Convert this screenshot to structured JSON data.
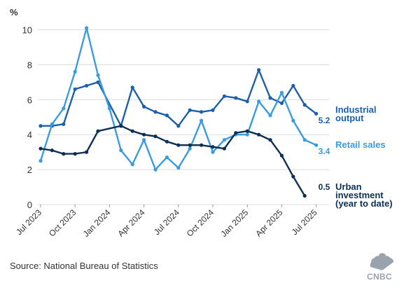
{
  "chart_data": {
    "type": "line",
    "title": "",
    "ylabel": "%",
    "xlabel": "",
    "ylim": [
      0,
      10
    ],
    "yticks": [
      0,
      2,
      4,
      6,
      8,
      10
    ],
    "grid": true,
    "months": [
      "Jul 2023",
      "Aug 2023",
      "Sep 2023",
      "Oct 2023",
      "Nov 2023",
      "Dec 2023",
      "Jan 2024",
      "Feb 2024",
      "Mar 2024",
      "Apr 2024",
      "May 2024",
      "Jun 2024",
      "Jul 2024",
      "Aug 2024",
      "Sep 2024",
      "Oct 2024",
      "Nov 2024",
      "Dec 2024",
      "Jan 2025",
      "Feb 2025",
      "Mar 2025",
      "Apr 2025",
      "May 2025",
      "Jun 2025",
      "Jul 2025",
      "Aug 2025"
    ],
    "xtick_labels": [
      "Jul 2023",
      "Oct 2023",
      "Jan 2024",
      "Apr 2024",
      "Jul 2024",
      "Oct 2024",
      "Jan 2025",
      "Apr 2025",
      "Jul 2025"
    ],
    "series": [
      {
        "name": "Industrial output",
        "name_lines": [
          "Industrial",
          "output"
        ],
        "end_label": "5.2",
        "color": "#1f5fa8",
        "points": [
          [
            "Jul 2023",
            4.5
          ],
          [
            "Aug 2023",
            4.5
          ],
          [
            "Sep 2023",
            4.6
          ],
          [
            "Oct 2023",
            6.6
          ],
          [
            "Nov 2023",
            6.8
          ],
          [
            "Dec 2023",
            7.0
          ],
          [
            "Feb 2024",
            4.5
          ],
          [
            "Mar 2024",
            6.7
          ],
          [
            "Apr 2024",
            5.6
          ],
          [
            "May 2024",
            5.3
          ],
          [
            "Jun 2024",
            5.1
          ],
          [
            "Jul 2024",
            4.5
          ],
          [
            "Aug 2024",
            5.4
          ],
          [
            "Sep 2024",
            5.3
          ],
          [
            "Oct 2024",
            5.4
          ],
          [
            "Nov 2024",
            6.2
          ],
          [
            "Dec 2024",
            6.1
          ],
          [
            "Jan 2025",
            5.9
          ],
          [
            "Feb 2025",
            7.7
          ],
          [
            "Mar 2025",
            6.1
          ],
          [
            "Apr 2025",
            5.8
          ],
          [
            "May 2025",
            6.8
          ],
          [
            "Jun 2025",
            5.7
          ],
          [
            "Jul 2025",
            5.2
          ]
        ]
      },
      {
        "name": "Retail sales",
        "name_lines": [
          "Retail sales"
        ],
        "end_label": "3.4",
        "color": "#3a9be0",
        "points": [
          [
            "Jul 2023",
            2.5
          ],
          [
            "Aug 2023",
            4.6
          ],
          [
            "Sep 2023",
            5.5
          ],
          [
            "Oct 2023",
            7.6
          ],
          [
            "Nov 2023",
            10.1
          ],
          [
            "Dec 2023",
            7.4
          ],
          [
            "Jan 2024",
            5.5
          ],
          [
            "Feb 2024",
            3.1
          ],
          [
            "Mar 2024",
            2.3
          ],
          [
            "Apr 2024",
            3.7
          ],
          [
            "May 2024",
            2.0
          ],
          [
            "Jun 2024",
            2.7
          ],
          [
            "Jul 2024",
            2.1
          ],
          [
            "Aug 2024",
            3.2
          ],
          [
            "Sep 2024",
            4.8
          ],
          [
            "Oct 2024",
            3.0
          ],
          [
            "Nov 2024",
            3.7
          ],
          [
            "Dec 2024",
            4.0
          ],
          [
            "Jan 2025",
            4.0
          ],
          [
            "Feb 2025",
            5.9
          ],
          [
            "Mar 2025",
            5.1
          ],
          [
            "Apr 2025",
            6.4
          ],
          [
            "May 2025",
            4.8
          ],
          [
            "Jun 2025",
            3.7
          ],
          [
            "Jul 2025",
            3.4
          ]
        ]
      },
      {
        "name": "Urban investment (year to date)",
        "name_lines": [
          "Urban",
          "investment",
          "(year to date)"
        ],
        "end_label": "0.5",
        "color": "#0d2f54",
        "points": [
          [
            "Jul 2023",
            3.2
          ],
          [
            "Aug 2023",
            3.1
          ],
          [
            "Sep 2023",
            2.9
          ],
          [
            "Oct 2023",
            2.9
          ],
          [
            "Nov 2023",
            3.0
          ],
          [
            "Dec 2023",
            4.2
          ],
          [
            "Feb 2024",
            4.5
          ],
          [
            "Mar 2024",
            4.2
          ],
          [
            "Apr 2024",
            4.0
          ],
          [
            "May 2024",
            3.9
          ],
          [
            "Jun 2024",
            3.6
          ],
          [
            "Jul 2024",
            3.4
          ],
          [
            "Aug 2024",
            3.4
          ],
          [
            "Sep 2024",
            3.4
          ],
          [
            "Oct 2024",
            3.3
          ],
          [
            "Nov 2024",
            3.2
          ],
          [
            "Dec 2024",
            4.1
          ],
          [
            "Jan 2025",
            4.2
          ],
          [
            "Feb 2025",
            4.0
          ],
          [
            "Mar 2025",
            3.7
          ],
          [
            "Apr 2025",
            2.8
          ],
          [
            "May 2025",
            1.6
          ],
          [
            "Jun 2025",
            0.5
          ]
        ]
      }
    ]
  },
  "source_text": "Source: National Bureau of Statistics",
  "logo_text": "CNBC",
  "logo_icon": "peacock-logo-icon"
}
